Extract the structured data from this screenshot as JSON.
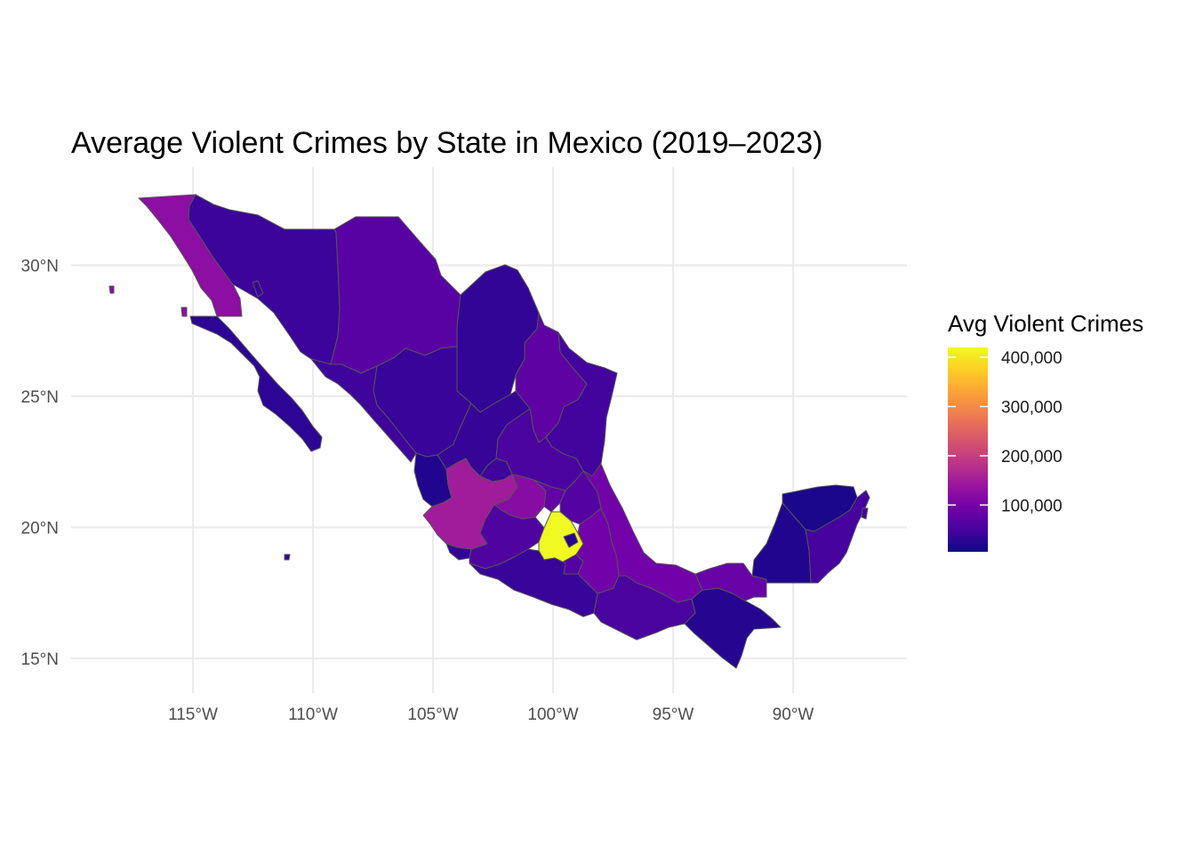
{
  "title": "Average Violent Crimes by State in Mexico (2019–2023)",
  "chart_data": {
    "type": "choropleth",
    "title": "Average Violent Crimes by State in Mexico (2019–2023)",
    "xlabel": "",
    "ylabel": "",
    "x_ticks": [
      {
        "value": -115,
        "label": "115°W"
      },
      {
        "value": -110,
        "label": "110°W"
      },
      {
        "value": -105,
        "label": "105°W"
      },
      {
        "value": -100,
        "label": "100°W"
      },
      {
        "value": -95,
        "label": "95°W"
      },
      {
        "value": -90,
        "label": "90°W"
      }
    ],
    "y_ticks": [
      {
        "value": 15,
        "label": "15°N"
      },
      {
        "value": 20,
        "label": "20°N"
      },
      {
        "value": 25,
        "label": "25°N"
      },
      {
        "value": 30,
        "label": "30°N"
      }
    ],
    "xlim": [
      -119,
      -85.2
    ],
    "ylim": [
      13.6,
      33.8
    ],
    "grid": true,
    "legend": {
      "title": "Avg Violent Crimes",
      "position": "right",
      "palette": "plasma",
      "colors": [
        "#0d0887",
        "#47039f",
        "#7301a8",
        "#9c179e",
        "#bd3786",
        "#d8576b",
        "#ed7953",
        "#fb9f3a",
        "#fdca26",
        "#f0f921"
      ],
      "range": [
        5000,
        420000
      ],
      "breaks": [
        {
          "value": 100000,
          "label": "100,000"
        },
        {
          "value": 200000,
          "label": "200,000"
        },
        {
          "value": 300000,
          "label": "300,000"
        },
        {
          "value": 400000,
          "label": "400,000"
        }
      ]
    },
    "regions": [
      {
        "name": "Baja California",
        "value": 125000
      },
      {
        "name": "Baja California Sur",
        "value": 30000
      },
      {
        "name": "Sonora",
        "value": 42000
      },
      {
        "name": "Chihuahua",
        "value": 70000
      },
      {
        "name": "Coahuila",
        "value": 35000
      },
      {
        "name": "Nuevo León",
        "value": 75000
      },
      {
        "name": "Tamaulipas",
        "value": 48000
      },
      {
        "name": "Sinaloa",
        "value": 45000
      },
      {
        "name": "Durango",
        "value": 40000
      },
      {
        "name": "Zacatecas",
        "value": 38000
      },
      {
        "name": "San Luis Potosí",
        "value": 55000
      },
      {
        "name": "Nayarit",
        "value": 20000
      },
      {
        "name": "Aguascalientes",
        "value": 45000
      },
      {
        "name": "Jalisco",
        "value": 150000
      },
      {
        "name": "Guanajuato",
        "value": 120000
      },
      {
        "name": "Querétaro",
        "value": 80000
      },
      {
        "name": "Hidalgo",
        "value": 65000
      },
      {
        "name": "Colima",
        "value": 35000
      },
      {
        "name": "Michoacán",
        "value": 60000
      },
      {
        "name": "México",
        "value": 420000
      },
      {
        "name": "Ciudad de México",
        "value": 25000
      },
      {
        "name": "Morelos",
        "value": 65000
      },
      {
        "name": "Tlaxcala",
        "value": 40000
      },
      {
        "name": "Puebla",
        "value": 95000
      },
      {
        "name": "Veracruz",
        "value": 95000
      },
      {
        "name": "Guerrero",
        "value": 40000
      },
      {
        "name": "Oaxaca",
        "value": 55000
      },
      {
        "name": "Chiapas",
        "value": 25000
      },
      {
        "name": "Tabasco",
        "value": 85000
      },
      {
        "name": "Campeche",
        "value": 20000
      },
      {
        "name": "Yucatán",
        "value": 15000
      },
      {
        "name": "Quintana Roo",
        "value": 50000
      }
    ]
  }
}
